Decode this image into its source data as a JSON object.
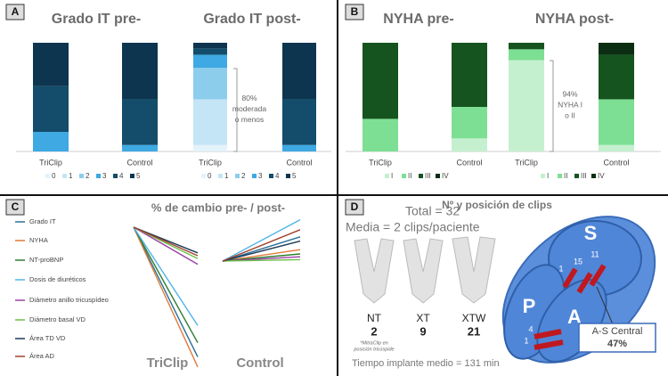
{
  "panels": [
    "A",
    "B",
    "C",
    "D"
  ],
  "chart_data": [
    {
      "type": "stacked_bar",
      "title": "Grado IT pre-",
      "categories": [
        "TriClip",
        "Control"
      ],
      "series": [
        {
          "name": "0",
          "color": "#e4f2fa",
          "values": [
            0,
            0
          ]
        },
        {
          "name": "1",
          "color": "#c4e5f5",
          "values": [
            0,
            0
          ]
        },
        {
          "name": "2",
          "color": "#8ccdec",
          "values": [
            0,
            0
          ]
        },
        {
          "name": "3",
          "color": "#3ea9e2",
          "values": [
            18,
            6
          ]
        },
        {
          "name": "4",
          "color": "#134d6b",
          "values": [
            42,
            42
          ]
        },
        {
          "name": "5",
          "color": "#0d3550",
          "values": [
            40,
            52
          ]
        }
      ]
    },
    {
      "type": "stacked_bar",
      "title": "Grado IT post-",
      "categories": [
        "TriClip",
        "Control"
      ],
      "series": [
        {
          "name": "0",
          "color": "#e4f2fa",
          "values": [
            6,
            0
          ]
        },
        {
          "name": "1",
          "color": "#c4e5f5",
          "values": [
            42,
            0
          ]
        },
        {
          "name": "2",
          "color": "#8ccdec",
          "values": [
            29,
            0
          ]
        },
        {
          "name": "3",
          "color": "#3ea9e2",
          "values": [
            12,
            6
          ]
        },
        {
          "name": "4",
          "color": "#134d6b",
          "values": [
            6,
            42
          ]
        },
        {
          "name": "5",
          "color": "#0d3550",
          "values": [
            5,
            52
          ]
        }
      ],
      "annotation": [
        "80%",
        "moderada",
        "o menos"
      ]
    },
    {
      "type": "stacked_bar",
      "title": "NYHA pre-",
      "categories": [
        "TriClip",
        "Control"
      ],
      "series": [
        {
          "name": "I",
          "color": "#c5f0cf",
          "values": [
            0,
            12
          ]
        },
        {
          "name": "II",
          "color": "#7ddf93",
          "values": [
            30,
            29
          ]
        },
        {
          "name": "III",
          "color": "#15531f",
          "values": [
            70,
            59
          ]
        },
        {
          "name": "IV",
          "color": "#0b2e12",
          "values": [
            0,
            0
          ]
        }
      ]
    },
    {
      "type": "stacked_bar",
      "title": "NYHA post-",
      "categories": [
        "TriClip",
        "Control"
      ],
      "series": [
        {
          "name": "I",
          "color": "#c5f0cf",
          "values": [
            84,
            6
          ]
        },
        {
          "name": "II",
          "color": "#7ddf93",
          "values": [
            10,
            42
          ]
        },
        {
          "name": "III",
          "color": "#15531f",
          "values": [
            6,
            41
          ]
        },
        {
          "name": "IV",
          "color": "#0b2e12",
          "values": [
            0,
            11
          ]
        }
      ],
      "annotation": [
        "94%",
        "NYHA I",
        "o II"
      ]
    },
    {
      "type": "slope",
      "title": "% de cambio pre- / post-",
      "categories": [
        "TriClip",
        "Control"
      ],
      "series": [
        {
          "name": "Grado IT",
          "color": "#2a6f97",
          "values": [
            -91,
            17
          ]
        },
        {
          "name": "NYHA",
          "color": "#e07b39",
          "values": [
            -98,
            8
          ]
        },
        {
          "name": "NT-proBNP",
          "color": "#2e7d32",
          "values": [
            -81,
            5
          ]
        },
        {
          "name": "Dosis de diuréticos",
          "color": "#4fb3e8",
          "values": [
            -69,
            29
          ]
        },
        {
          "name": "Diámetro anillo tricuspídeo",
          "color": "#9c3fa6",
          "values": [
            -26,
            3
          ]
        },
        {
          "name": "Diámetro basal VD",
          "color": "#6cc04a",
          "values": [
            -22,
            1
          ]
        },
        {
          "name": "Área TD VD",
          "color": "#1b3a57",
          "values": [
            -18,
            14
          ]
        },
        {
          "name": "Área AD",
          "color": "#a0422e",
          "values": [
            -20,
            22
          ]
        }
      ]
    }
  ],
  "diagram": {
    "title": "Nº y posición de clips",
    "total": "Total = 32",
    "mean": "Media = 2 clips/paciente",
    "clips": [
      {
        "name": "NT",
        "count": "2"
      },
      {
        "name": "XT",
        "count": "9"
      },
      {
        "name": "XTW",
        "count": "21"
      }
    ],
    "note": [
      "*MitraClip en",
      "posición tricúspide"
    ],
    "time": "Tiempo implante medio = 131 min",
    "leaflets": [
      "S",
      "P",
      "A"
    ],
    "clip_counts": [
      "1",
      "15",
      "11",
      "4",
      "1"
    ],
    "callout": [
      "A-S Central",
      "47%"
    ]
  }
}
